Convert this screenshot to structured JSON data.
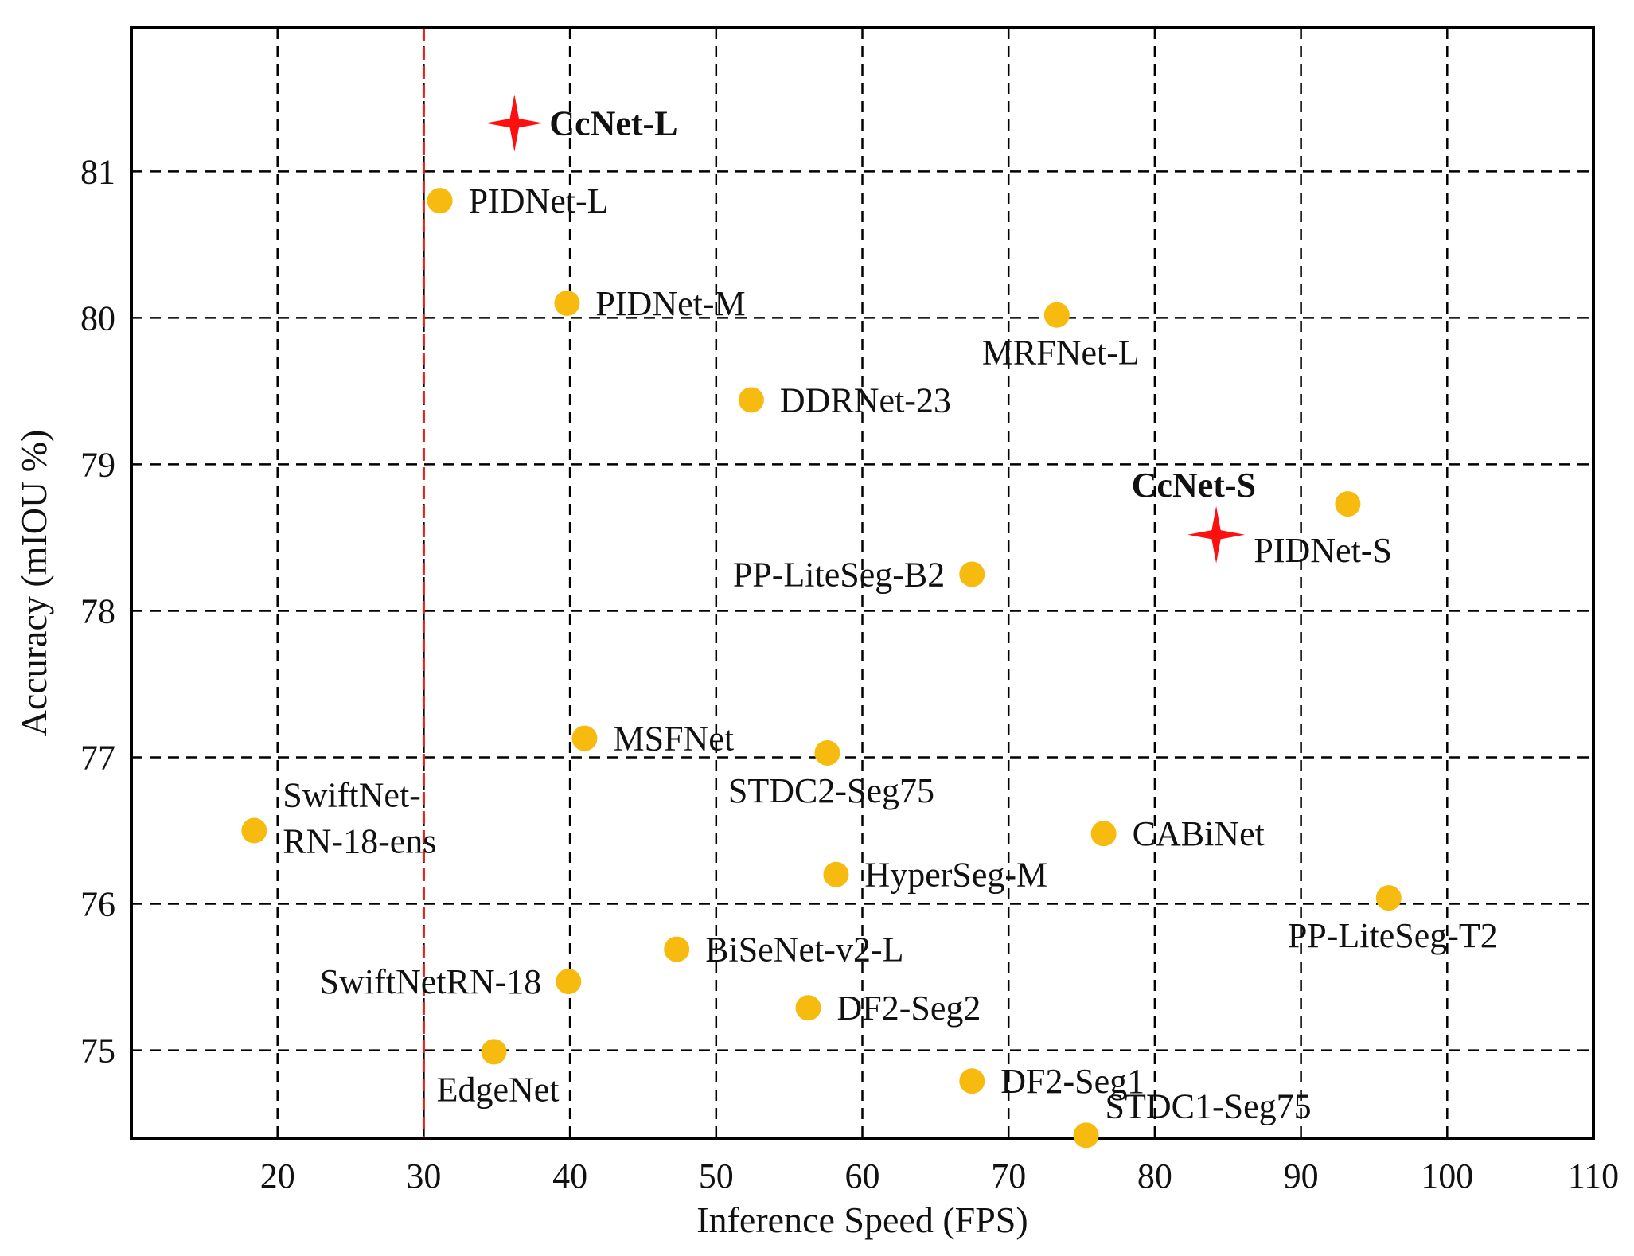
{
  "chart_data": {
    "type": "scatter",
    "xlabel": "Inference Speed (FPS)",
    "ylabel": "Accuracy (mIOU %)",
    "xlim": [
      10,
      110
    ],
    "ylim": [
      74.4,
      81.98
    ],
    "xticks": [
      20,
      30,
      40,
      50,
      60,
      70,
      80,
      90,
      100,
      110
    ],
    "yticks": [
      75,
      76,
      77,
      78,
      79,
      80,
      81
    ],
    "grid": true,
    "reference_line": {
      "x": 30,
      "color": "#e8201a"
    },
    "colors": {
      "point": "#f7bb0f",
      "highlight": "#ff1010"
    },
    "points": [
      {
        "name": "CcNet-L",
        "x": 36.2,
        "y": 81.33,
        "marker": "star",
        "bold": true,
        "label_pos": "right"
      },
      {
        "name": "PIDNet-L",
        "x": 31.1,
        "y": 80.8,
        "marker": "circle",
        "label_pos": "right"
      },
      {
        "name": "PIDNet-M",
        "x": 39.8,
        "y": 80.1,
        "marker": "circle",
        "label_pos": "right"
      },
      {
        "name": "MRFNet-L",
        "x": 73.3,
        "y": 80.02,
        "marker": "circle",
        "label_pos": "below"
      },
      {
        "name": "DDRNet-23",
        "x": 52.4,
        "y": 79.44,
        "marker": "circle",
        "label_pos": "right"
      },
      {
        "name": "CcNet-S",
        "x": 84.2,
        "y": 78.52,
        "marker": "star",
        "bold": true,
        "label_pos": "above-left"
      },
      {
        "name": "PIDNet-S",
        "x": 93.2,
        "y": 78.73,
        "marker": "circle",
        "label_pos": "below-left"
      },
      {
        "name": "PP-LiteSeg-B2",
        "x": 67.5,
        "y": 78.25,
        "marker": "circle",
        "label_pos": "left"
      },
      {
        "name": "MSFNet",
        "x": 41.0,
        "y": 77.13,
        "marker": "circle",
        "label_pos": "right"
      },
      {
        "name": "STDC2-Seg75",
        "x": 57.6,
        "y": 77.03,
        "marker": "circle",
        "label_pos": "below"
      },
      {
        "name": "SwiftNet-RN-18-ens",
        "x": 18.4,
        "y": 76.5,
        "marker": "circle",
        "label_pos": "right-two-line",
        "label_lines": [
          "SwiftNet-",
          "RN-18-ens"
        ]
      },
      {
        "name": "CABiNet",
        "x": 76.5,
        "y": 76.48,
        "marker": "circle",
        "label_pos": "right"
      },
      {
        "name": "HyperSeg-M",
        "x": 58.2,
        "y": 76.2,
        "marker": "circle",
        "label_pos": "right"
      },
      {
        "name": "PP-LiteSeg-T2",
        "x": 96.0,
        "y": 76.04,
        "marker": "circle",
        "label_pos": "below"
      },
      {
        "name": "BiSeNet-v2-L",
        "x": 47.3,
        "y": 75.69,
        "marker": "circle",
        "label_pos": "right"
      },
      {
        "name": "SwiftNetRN-18",
        "x": 39.9,
        "y": 75.47,
        "marker": "circle",
        "label_pos": "left"
      },
      {
        "name": "DF2-Seg2",
        "x": 56.3,
        "y": 75.29,
        "marker": "circle",
        "label_pos": "right"
      },
      {
        "name": "EdgeNet",
        "x": 34.8,
        "y": 74.99,
        "marker": "circle",
        "label_pos": "below"
      },
      {
        "name": "DF2-Seg1",
        "x": 67.5,
        "y": 74.79,
        "marker": "circle",
        "label_pos": "right"
      },
      {
        "name": "STDC1-Seg75",
        "x": 75.3,
        "y": 74.42,
        "marker": "circle",
        "label_pos": "above-right"
      }
    ]
  }
}
